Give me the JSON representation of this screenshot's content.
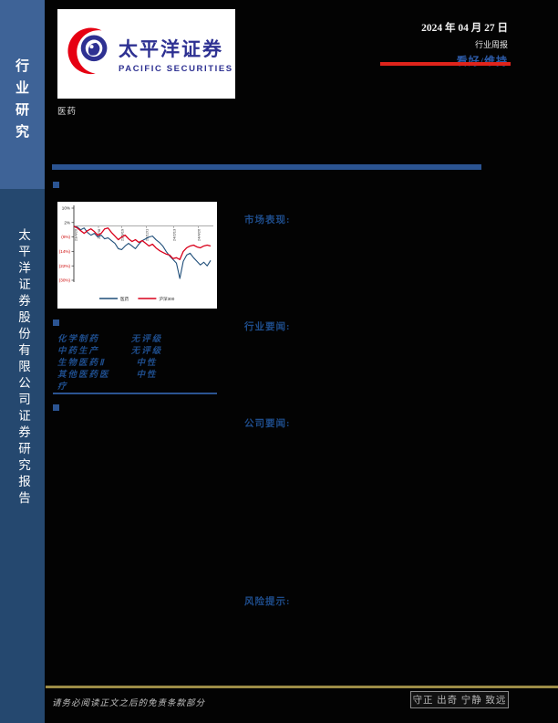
{
  "colors": {
    "accent_blue": "#2B5492",
    "label_blue": "#1E4C8A",
    "rating_blue": "#2D5BA8",
    "sidebar_top": "#3E6397",
    "sidebar_bottom": "#25486F",
    "red_accent": "#E0241B",
    "gold": "#9C8C46",
    "logo_blue": "#2E3192",
    "logo_red": "#E60012"
  },
  "sidebar": {
    "top_label": "行业研究",
    "bottom_label": "太平洋证券股份有限公司证券研究报告"
  },
  "header": {
    "logo": {
      "cn": "太平洋证券",
      "en": "PACIFIC SECURITIES"
    },
    "date": "2024 年 04 月 27 日",
    "report_type": "行业周报",
    "rating": "看好/维持"
  },
  "industry_label": "医药",
  "sections": {
    "market": "市场表现:",
    "industry_news": "行业要闻:",
    "company_news": "公司要闻:",
    "risk": "风险提示:"
  },
  "ratings_table": {
    "rows": [
      {
        "name": "化学制药",
        "rating": "无评级"
      },
      {
        "name": "中药生产",
        "rating": "无评级"
      },
      {
        "name": "生物医药Ⅱ",
        "rating": "中性"
      },
      {
        "name": "其他医药医疗",
        "rating": "中性"
      }
    ]
  },
  "chart_data": {
    "type": "line",
    "title": "",
    "ylim": [
      -30,
      10
    ],
    "grid": false,
    "legend_position": "bottom",
    "y_ticks": [
      {
        "label": "10%",
        "value": 10,
        "color": "#1a1a1a"
      },
      {
        "label": "2%",
        "value": 2,
        "color": "#1a1a1a"
      },
      {
        "label": "(6%)",
        "value": -6,
        "color": "#CC0000"
      },
      {
        "label": "(14%)",
        "value": -14,
        "color": "#CC0000"
      },
      {
        "label": "(22%)",
        "value": -22,
        "color": "#CC0000"
      },
      {
        "label": "(30%)",
        "value": -30,
        "color": "#CC0000"
      }
    ],
    "x_ticks": [
      {
        "pos": 0.01,
        "label": "23/4/26"
      },
      {
        "pos": 0.18,
        "label": "23/7/8"
      },
      {
        "pos": 0.35,
        "label": "23/9/19"
      },
      {
        "pos": 0.53,
        "label": "23/12/1"
      },
      {
        "pos": 0.73,
        "label": "24/2/13"
      },
      {
        "pos": 0.91,
        "label": "24/4/26"
      }
    ],
    "series": [
      {
        "name": "医药",
        "color": "#1F4E79",
        "width": 1.1,
        "values": [
          0,
          -0.5,
          -2,
          -1,
          -3.5,
          -5,
          -4,
          -6,
          -5,
          -7,
          -6.5,
          -8,
          -9.5,
          -12.5,
          -13,
          -11,
          -9.5,
          -11,
          -12.5,
          -10,
          -8,
          -7,
          -6,
          -5.5,
          -7.5,
          -9,
          -11,
          -14,
          -16.5,
          -18.5,
          -20.5,
          -29,
          -19.5,
          -16,
          -15,
          -17.5,
          -19.5,
          -21.5,
          -20,
          -22,
          -19
        ]
      },
      {
        "name": "沪深300",
        "color": "#D9001B",
        "width": 1.3,
        "values": [
          0,
          -1,
          -2.5,
          -4,
          -2.5,
          -1.5,
          -3,
          -5,
          -4,
          -1.5,
          -1,
          -3.5,
          -5.5,
          -7.5,
          -6,
          -5,
          -7,
          -8.5,
          -7.5,
          -9,
          -8,
          -9.5,
          -11,
          -10,
          -12,
          -13.5,
          -14.5,
          -15.5,
          -16,
          -18,
          -17.5,
          -18.5,
          -14,
          -12,
          -11,
          -10.5,
          -11.5,
          -12,
          -11,
          -10.5,
          -11
        ]
      }
    ]
  },
  "footer": {
    "disclaimer": "请务必阅读正文之后的免责条款部分",
    "motto": "守正 出奇 宁静 致远"
  }
}
